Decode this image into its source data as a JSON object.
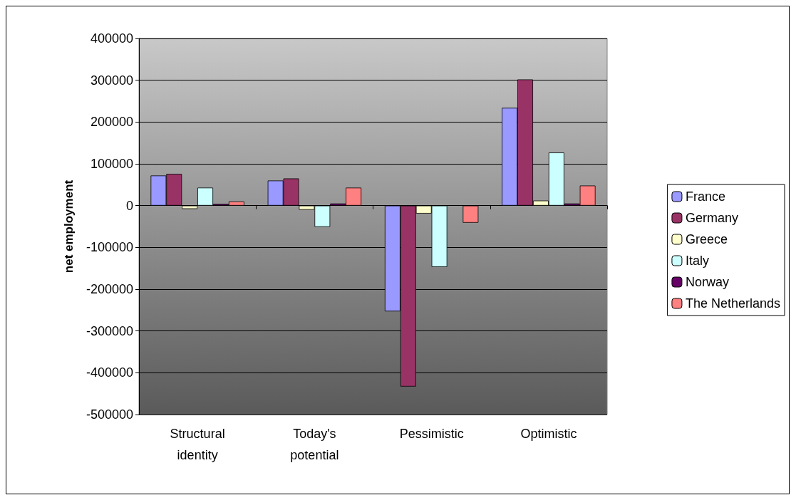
{
  "chart_data": {
    "type": "bar",
    "ylabel": "net employment",
    "categories": [
      "Structural identity",
      "Today's potential",
      "Pessimistic",
      "Optimistic"
    ],
    "series": [
      {
        "name": "France",
        "color": "#9999ff",
        "values": [
          72000,
          60000,
          -253000,
          234000
        ]
      },
      {
        "name": "Germany",
        "color": "#993366",
        "values": [
          76000,
          65000,
          -433000,
          302000
        ]
      },
      {
        "name": "Greece",
        "color": "#ffffcc",
        "values": [
          -8000,
          -10000,
          -19000,
          12000
        ]
      },
      {
        "name": "Italy",
        "color": "#ccffff",
        "values": [
          43000,
          -51000,
          -147000,
          127000
        ]
      },
      {
        "name": "Norway",
        "color": "#660066",
        "values": [
          4000,
          5000,
          null,
          5000
        ]
      },
      {
        "name": "The Netherlands",
        "color": "#ff8080",
        "values": [
          10000,
          43000,
          -41000,
          48000
        ]
      }
    ],
    "ylim": [
      -500000,
      400000
    ],
    "yticks": [
      -500000,
      -400000,
      -300000,
      -200000,
      -100000,
      0,
      100000,
      200000,
      300000,
      400000
    ],
    "grid": "y",
    "legend": "right"
  }
}
